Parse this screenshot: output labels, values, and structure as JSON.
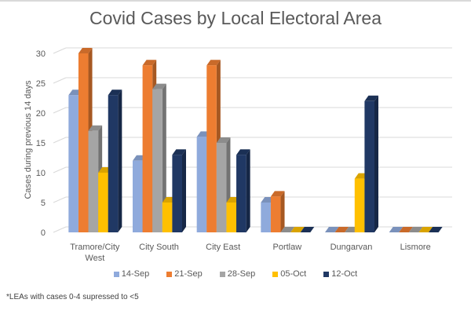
{
  "chart_data": {
    "type": "bar",
    "title": "Covid Cases by Local Electoral Area",
    "xlabel": "",
    "ylabel": "Cases during previous 14 days",
    "ylim": [
      0,
      30
    ],
    "yticks": [
      0,
      5,
      10,
      15,
      20,
      25,
      30
    ],
    "grid": true,
    "legend_position": "bottom",
    "categories": [
      [
        "Tramore/City",
        "West"
      ],
      [
        "City South"
      ],
      [
        "City East"
      ],
      [
        "Portlaw"
      ],
      [
        "Dungarvan"
      ],
      [
        "Lismore"
      ]
    ],
    "series": [
      {
        "name": "14-Sep",
        "color": "#8faadc",
        "values": [
          23,
          12,
          16,
          5,
          0,
          0
        ]
      },
      {
        "name": "21-Sep",
        "color": "#ed7d31",
        "values": [
          30,
          28,
          28,
          6,
          0,
          0
        ]
      },
      {
        "name": "28-Sep",
        "color": "#a5a5a5",
        "values": [
          17,
          24,
          15,
          0,
          0,
          0
        ]
      },
      {
        "name": "05-Oct",
        "color": "#ffc000",
        "values": [
          10,
          5,
          5,
          0,
          9,
          0
        ]
      },
      {
        "name": "12-Oct",
        "color": "#203864",
        "values": [
          23,
          13,
          13,
          0,
          22,
          0
        ]
      }
    ],
    "annotations": [
      "*LEAs with cases 0-4 supressed to <5"
    ]
  }
}
